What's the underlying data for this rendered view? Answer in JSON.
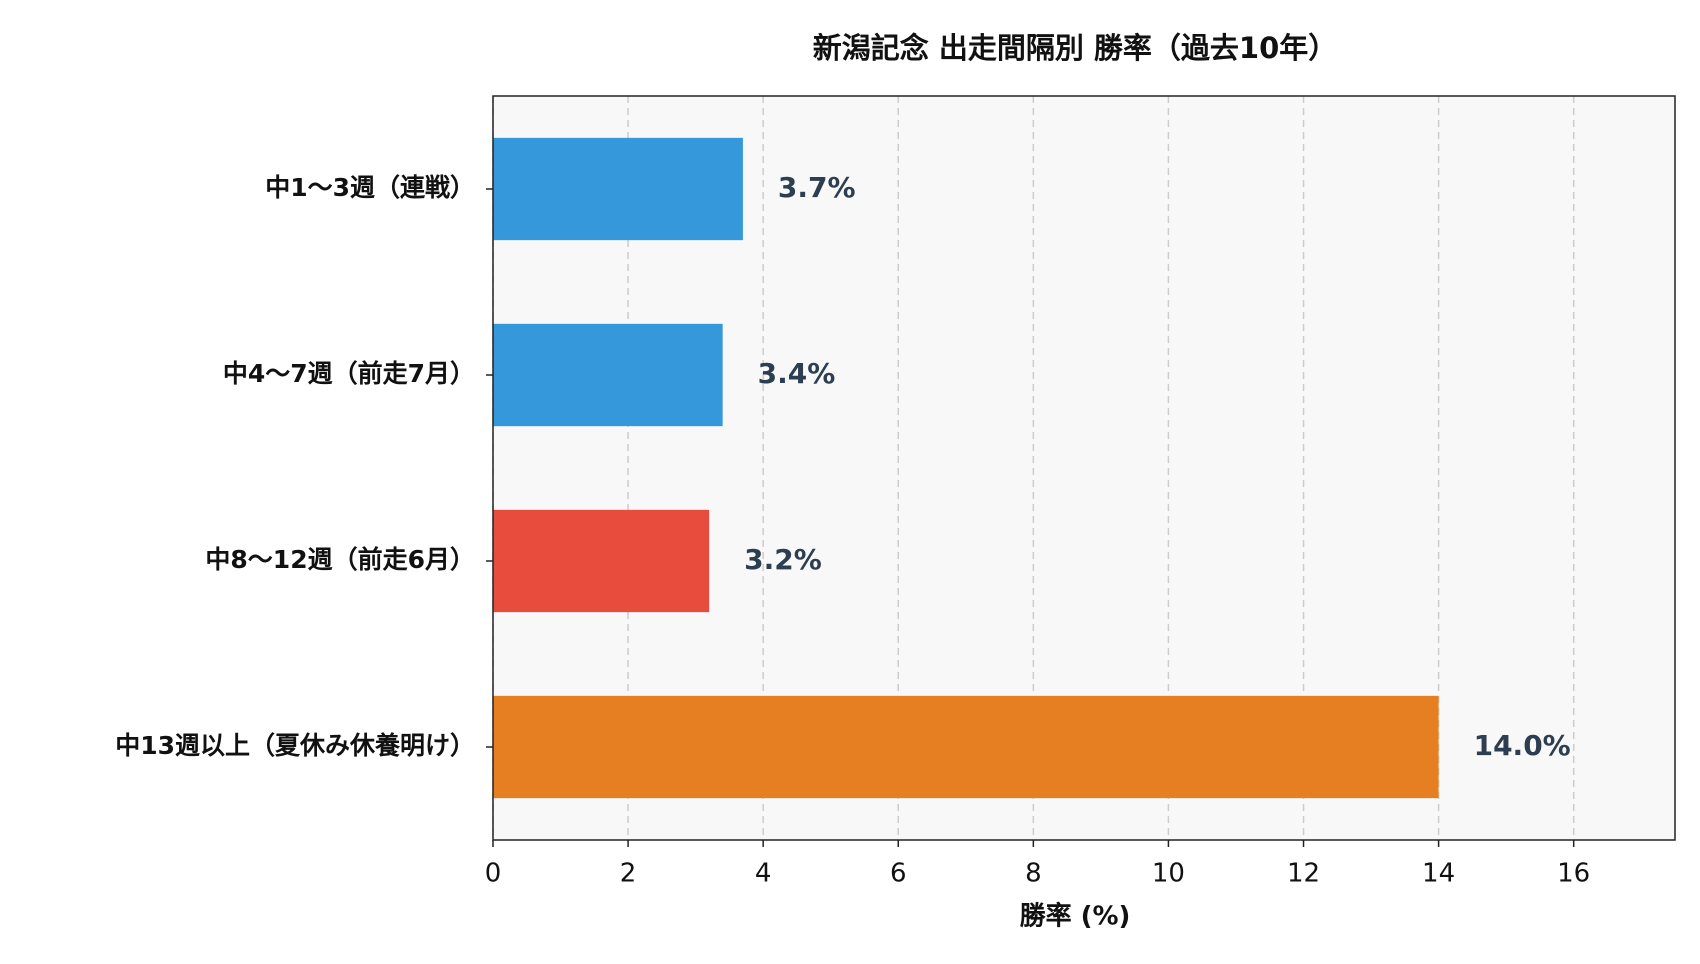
{
  "chart_data": {
    "type": "barh",
    "title": "新潟記念 出走間隔別 勝率（過去10年）",
    "x_label": "勝率 (%)",
    "categories": [
      "中1〜3週（連戦）",
      "中4〜7週（前走7月）",
      "中8〜12週（前走6月）",
      "中13週以上（夏休み休養明け）"
    ],
    "values": [
      3.7,
      3.4,
      3.2,
      14.0
    ],
    "value_labels": [
      "3.7%",
      "3.4%",
      "3.2%",
      "14.0%"
    ],
    "colors": [
      "#3498db",
      "#3498db",
      "#e74c3c",
      "#e67e22"
    ],
    "xlim": [
      0,
      17.5
    ],
    "xticks": [
      0,
      2,
      4,
      6,
      8,
      10,
      12,
      14,
      16
    ],
    "grid": true
  }
}
